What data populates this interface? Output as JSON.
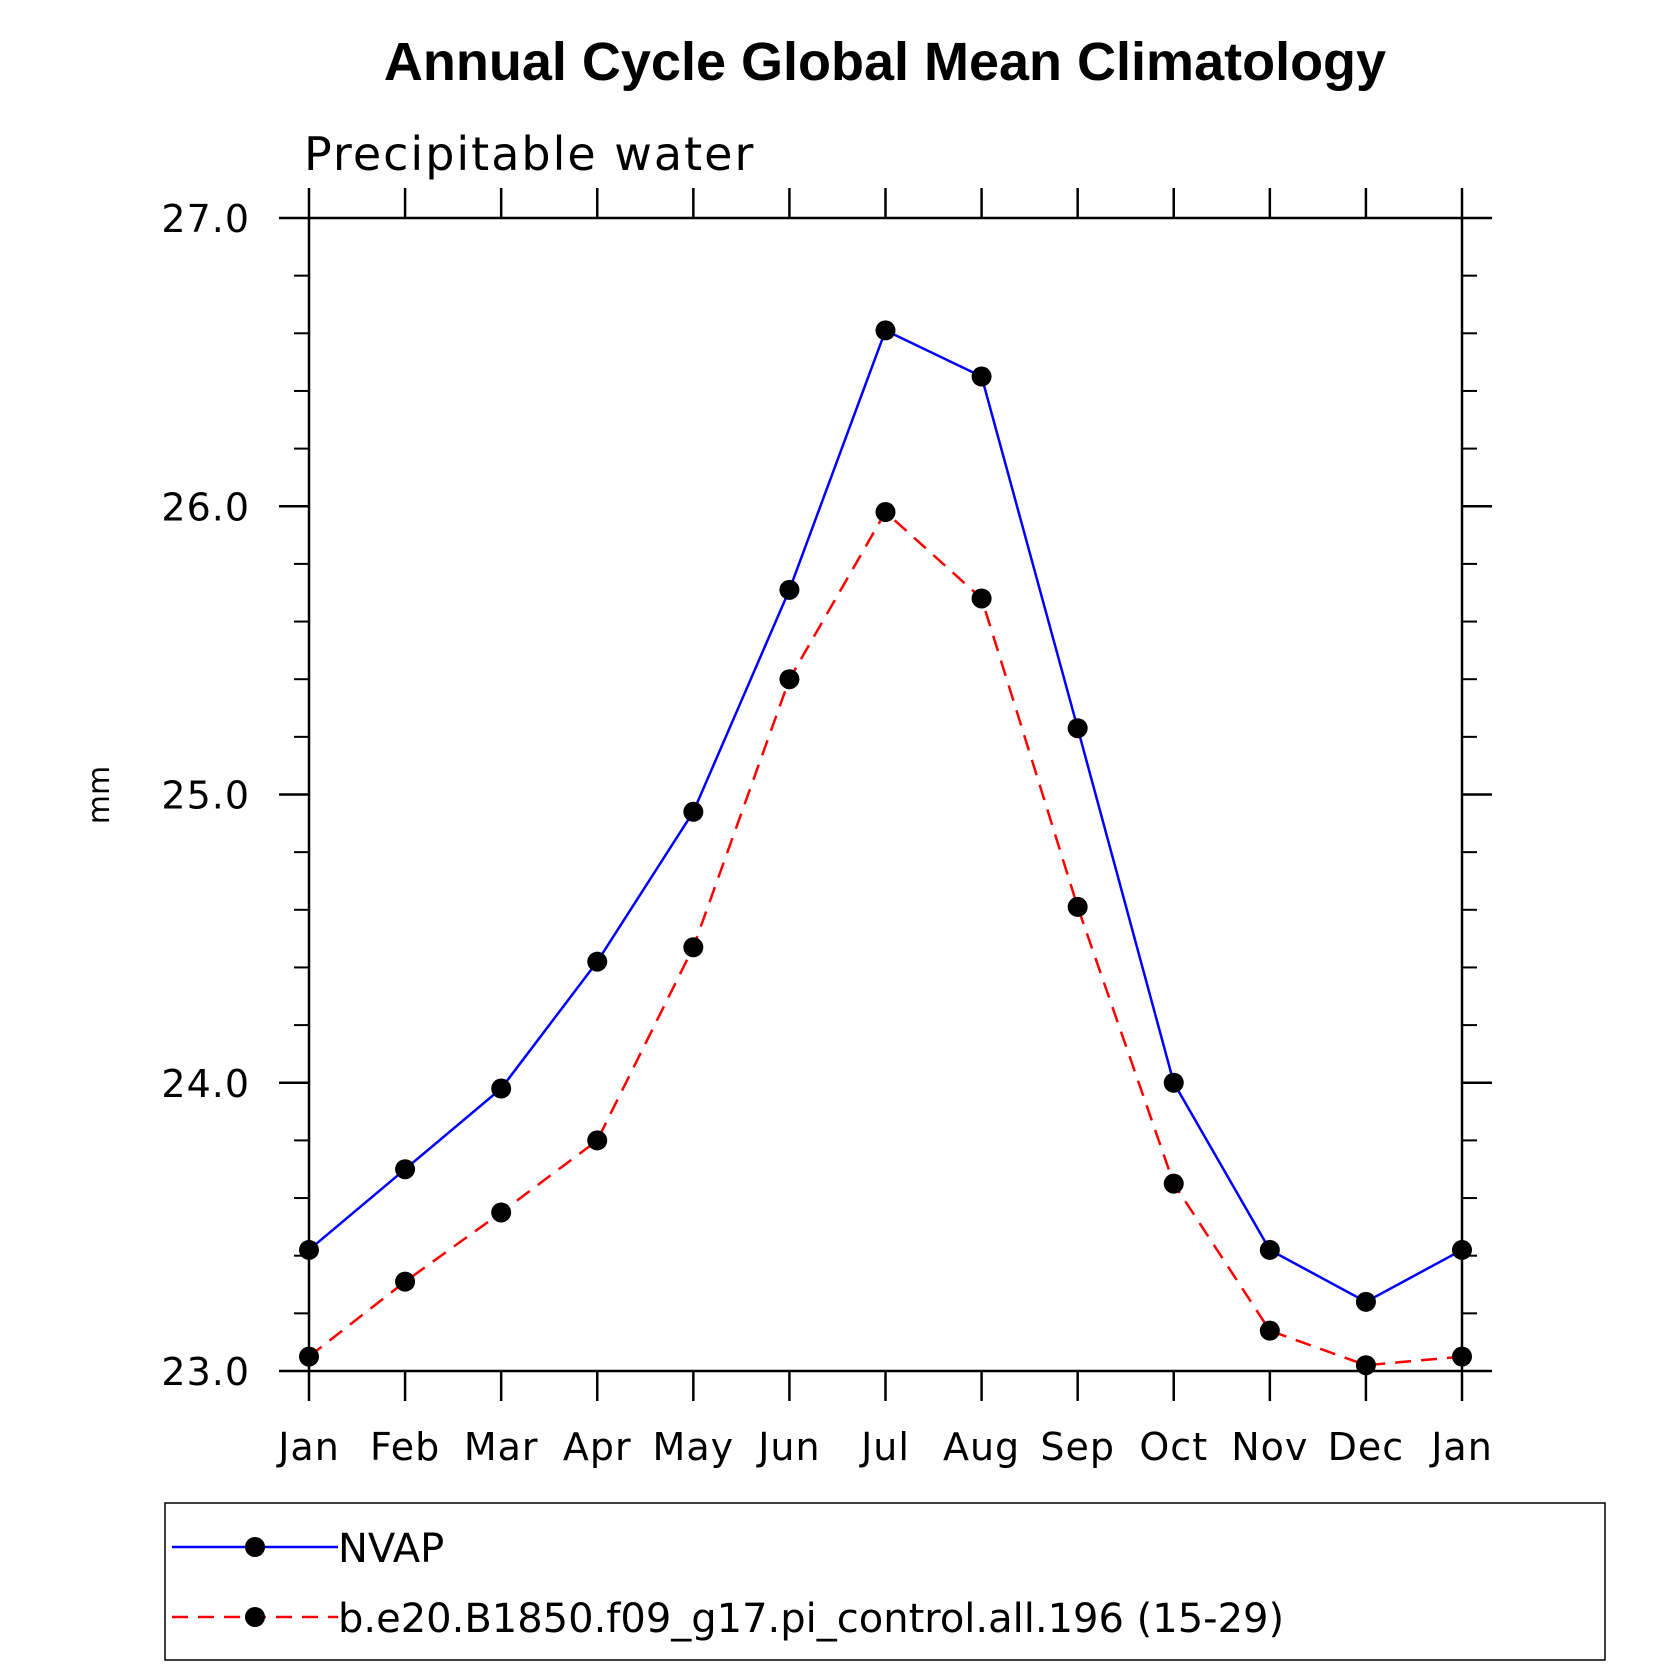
{
  "chart_data": {
    "type": "line",
    "title": "Annual Cycle Global Mean Climatology",
    "subtitle": "Precipitable water",
    "xlabel": "",
    "ylabel": "mm",
    "ylim": [
      23.0,
      27.0
    ],
    "y_ticks": [
      "23.0",
      "24.0",
      "25.0",
      "26.0",
      "27.0"
    ],
    "categories": [
      "Jan",
      "Feb",
      "Mar",
      "Apr",
      "May",
      "Jun",
      "Jul",
      "Aug",
      "Sep",
      "Oct",
      "Nov",
      "Dec",
      "Jan"
    ],
    "grid": false,
    "legend_position": "bottom",
    "series": [
      {
        "name": "NVAP",
        "color": "#0000ff",
        "line_style": "solid",
        "marker": "filled-circle",
        "values": [
          23.42,
          23.7,
          23.98,
          24.42,
          24.94,
          25.71,
          26.61,
          26.45,
          25.23,
          24.0,
          23.42,
          23.24,
          23.42
        ]
      },
      {
        "name": "b.e20.B1850.f09_g17.pi_control.all.196 (15-29)",
        "color": "#ff0000",
        "line_style": "dashed",
        "marker": "filled-circle",
        "values": [
          23.05,
          23.31,
          23.55,
          23.8,
          24.47,
          25.4,
          25.98,
          25.68,
          24.61,
          23.65,
          23.14,
          23.02,
          23.05
        ]
      }
    ]
  }
}
